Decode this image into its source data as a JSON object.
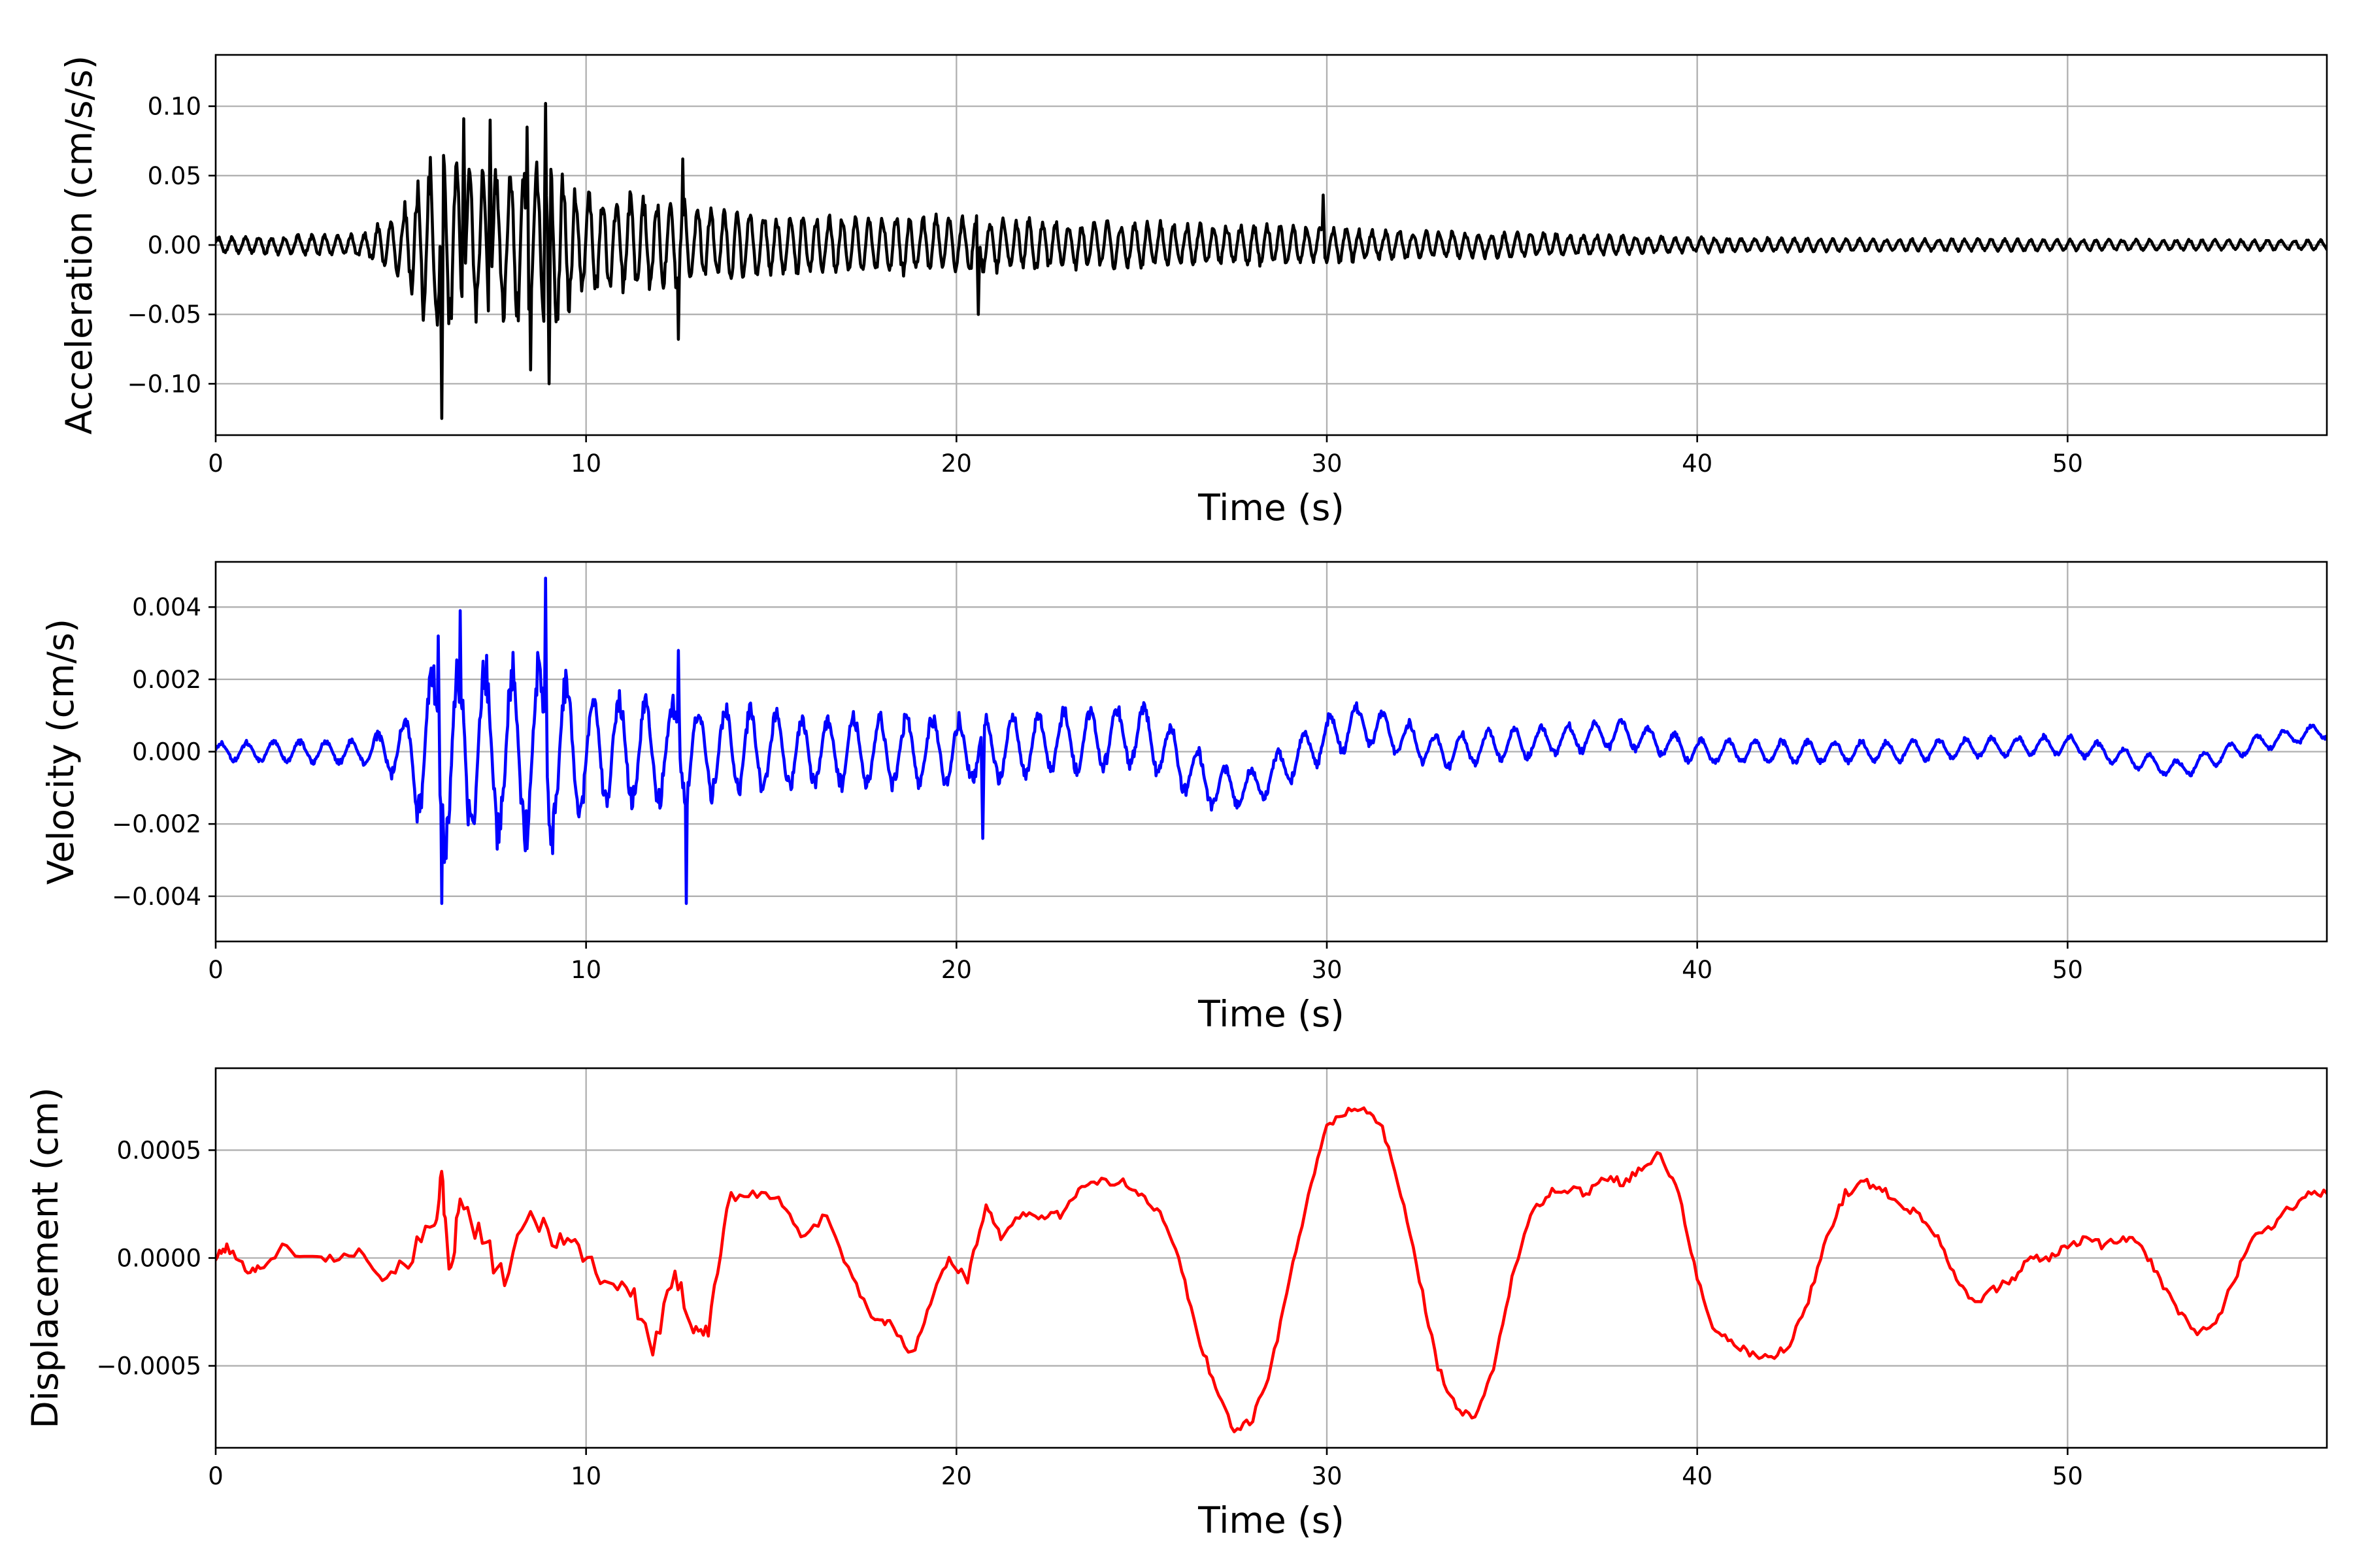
{
  "chart_data": [
    {
      "type": "line",
      "xlabel": "Time (s)",
      "ylabel": "Acceleration (cm/s/s)",
      "xlim": [
        0,
        57
      ],
      "ylim": [
        -0.137,
        0.137
      ],
      "xticks": [
        0,
        10,
        20,
        30,
        40,
        50
      ],
      "xtick_labels": [
        "0",
        "10",
        "20",
        "30",
        "40",
        "50"
      ],
      "yticks": [
        -0.1,
        -0.05,
        0.0,
        0.05,
        0.1
      ],
      "ytick_labels": [
        "−0.10",
        "−0.05",
        "0.00",
        "0.05",
        "0.10"
      ],
      "grid": true,
      "color": "#000000",
      "envelope": {
        "t": [
          0,
          4,
          5,
          6,
          7,
          8,
          9,
          10,
          12,
          13,
          15,
          20,
          25,
          30,
          31,
          35,
          40,
          45,
          50,
          57
        ],
        "amp": [
          0.006,
          0.009,
          0.028,
          0.075,
          0.06,
          0.06,
          0.07,
          0.04,
          0.038,
          0.032,
          0.025,
          0.022,
          0.018,
          0.015,
          0.012,
          0.01,
          0.006,
          0.005,
          0.0045,
          0.004
        ]
      },
      "peaks": [
        {
          "t": 6.1,
          "v": -0.125
        },
        {
          "t": 6.7,
          "v": 0.091
        },
        {
          "t": 7.4,
          "v": 0.09
        },
        {
          "t": 8.4,
          "v": 0.085
        },
        {
          "t": 8.9,
          "v": 0.102
        },
        {
          "t": 9.0,
          "v": -0.1
        },
        {
          "t": 8.5,
          "v": -0.09
        },
        {
          "t": 12.5,
          "v": -0.068
        },
        {
          "t": 12.6,
          "v": 0.062
        },
        {
          "t": 20.6,
          "v": -0.05
        },
        {
          "t": 29.9,
          "v": 0.036
        }
      ]
    },
    {
      "type": "line",
      "xlabel": "Time (s)",
      "ylabel": "Velocity (cm/s)",
      "xlim": [
        0,
        57
      ],
      "ylim": [
        -0.00525,
        0.00525
      ],
      "xticks": [
        0,
        10,
        20,
        30,
        40,
        50
      ],
      "xtick_labels": [
        "0",
        "10",
        "20",
        "30",
        "40",
        "50"
      ],
      "yticks": [
        -0.004,
        -0.002,
        0.0,
        0.002,
        0.004
      ],
      "ytick_labels": [
        "−0.004",
        "−0.002",
        "0.000",
        "0.002",
        "0.004"
      ],
      "grid": true,
      "color": "#0000ff",
      "envelope": {
        "t": [
          0,
          4,
          5,
          6,
          7,
          9,
          10,
          12,
          13,
          16,
          20,
          22,
          26,
          27,
          28,
          30,
          32,
          35,
          40,
          50,
          53,
          57
        ],
        "amp": [
          0.0003,
          0.0004,
          0.0009,
          0.0035,
          0.0028,
          0.003,
          0.0018,
          0.0017,
          0.0015,
          0.0012,
          0.0011,
          0.001,
          0.001,
          0.0007,
          0.0006,
          0.0007,
          0.0006,
          0.0005,
          0.0004,
          0.0003,
          0.0003,
          0.00025
        ]
      },
      "trend": {
        "t": [
          0,
          5,
          10,
          20,
          25,
          27,
          28,
          30,
          31,
          33,
          38,
          40,
          45,
          50,
          53,
          55,
          57
        ],
        "v": [
          0,
          0,
          0,
          0,
          0.0005,
          -0.001,
          -0.001,
          0.0004,
          0.0008,
          0,
          0.0005,
          0,
          0,
          0.0002,
          -0.0005,
          0.0002,
          0.0006
        ]
      },
      "peaks": [
        {
          "t": 6.1,
          "v": -0.0042
        },
        {
          "t": 6.0,
          "v": 0.0032
        },
        {
          "t": 6.6,
          "v": 0.0039
        },
        {
          "t": 8.9,
          "v": 0.0048
        },
        {
          "t": 12.7,
          "v": -0.0042
        },
        {
          "t": 12.5,
          "v": 0.0028
        },
        {
          "t": 20.7,
          "v": -0.0024
        }
      ]
    },
    {
      "type": "line",
      "xlabel": "Time (s)",
      "ylabel": "Displacement (cm)",
      "xlim": [
        0,
        57
      ],
      "ylim": [
        -0.00088,
        0.00088
      ],
      "xticks": [
        0,
        10,
        20,
        30,
        40,
        50
      ],
      "xtick_labels": [
        "0",
        "10",
        "20",
        "30",
        "40",
        "50"
      ],
      "yticks": [
        -0.0005,
        0.0,
        0.0005
      ],
      "ytick_labels": [
        "−0.0005",
        "0.0000",
        "0.0005"
      ],
      "grid": true,
      "color": "#ff0000",
      "x": [
        0,
        0.3,
        0.8,
        1.2,
        1.8,
        2.5,
        3.2,
        4.0,
        4.5,
        5.2,
        5.9,
        6.1,
        6.3,
        6.6,
        7.2,
        7.8,
        8.5,
        9.2,
        9.8,
        10.5,
        11.2,
        11.8,
        12.4,
        12.9,
        13.3,
        13.8,
        14.5,
        15.2,
        15.8,
        16.5,
        17.2,
        17.8,
        18.2,
        18.8,
        19.3,
        19.8,
        20.3,
        20.8,
        21.2,
        21.8,
        22.3,
        22.8,
        23.3,
        23.8,
        24.5,
        25.0,
        25.5,
        26.0,
        26.5,
        27.0,
        27.5,
        28.0,
        28.5,
        29.0,
        29.5,
        30.0,
        30.5,
        31.0,
        31.5,
        32.0,
        32.5,
        33.0,
        33.5,
        34.0,
        34.5,
        35.0,
        35.5,
        36.0,
        36.5,
        37.0,
        37.5,
        38.0,
        38.5,
        39.0,
        39.5,
        40.0,
        40.5,
        41.0,
        41.5,
        42.0,
        42.5,
        43.0,
        43.5,
        44.0,
        44.5,
        45.0,
        45.5,
        46.0,
        46.5,
        47.0,
        47.5,
        48.0,
        48.5,
        49.0,
        49.5,
        50.0,
        50.5,
        51.0,
        51.5,
        52.0,
        52.5,
        53.0,
        53.5,
        54.0,
        54.5,
        55.0,
        55.5,
        56.0,
        56.5,
        57.0
      ],
      "values": [
        0.0,
        5e-05,
        -5e-05,
        -5e-05,
        5e-05,
        0.0,
        0.0,
        3e-05,
        -0.0001,
        0.0,
        0.00015,
        0.00038,
        -0.0001,
        0.00025,
        8e-05,
        -0.0001,
        0.0002,
        0.0001,
        5e-05,
        -0.0001,
        -0.00015,
        -0.00042,
        -0.0001,
        -0.0003,
        -0.00035,
        0.00025,
        0.0003,
        0.00028,
        0.0001,
        0.0002,
        -0.0001,
        -0.0003,
        -0.0003,
        -0.00045,
        -0.0002,
        0.0,
        -0.0001,
        0.00025,
        0.0001,
        0.0002,
        0.0002,
        0.0002,
        0.00032,
        0.00035,
        0.00035,
        0.0003,
        0.0002,
        0.0,
        -0.00035,
        -0.0006,
        -0.0008,
        -0.00075,
        -0.0005,
        -0.0001,
        0.0003,
        0.0006,
        0.00068,
        0.0007,
        0.0006,
        0.0003,
        -0.0001,
        -0.0005,
        -0.0007,
        -0.00075,
        -0.0005,
        -0.0001,
        0.0002,
        0.0003,
        0.00032,
        0.0003,
        0.00038,
        0.00035,
        0.00042,
        0.00048,
        0.0003,
        -0.0001,
        -0.00035,
        -0.0004,
        -0.00045,
        -0.00047,
        -0.0004,
        -0.0002,
        0.0001,
        0.0003,
        0.00035,
        0.00032,
        0.00025,
        0.0002,
        0.0001,
        -0.0001,
        -0.0002,
        -0.00015,
        -0.0001,
        0.0,
        0.0,
        5e-05,
        0.0001,
        5e-05,
        0.0001,
        5e-05,
        -0.0001,
        -0.00025,
        -0.00035,
        -0.0003,
        -0.0001,
        0.0001,
        0.00015,
        0.00023,
        0.0003,
        0.0003
      ]
    }
  ]
}
